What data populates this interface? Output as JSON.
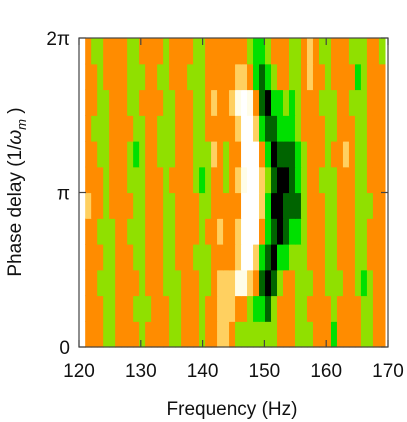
{
  "chart_data": {
    "type": "heatmap",
    "title": "",
    "xlabel": "Frequency (Hz)",
    "ylabel_main": "Phase delay (1/",
    "ylabel_symbol": "ω",
    "ylabel_sub": "m",
    "ylabel_close": " )",
    "xlim": [
      120,
      170
    ],
    "ylim_pi": [
      0,
      2
    ],
    "x_ticks": [
      120,
      130,
      140,
      150,
      160,
      170
    ],
    "x_tick_labels": [
      "120",
      "130",
      "140",
      "150",
      "160",
      "170"
    ],
    "y_ticks_pi": [
      0,
      1,
      2
    ],
    "y_tick_labels": [
      "0",
      "π",
      "2π"
    ],
    "x_min_data": 121,
    "x_step_hz": 0.97,
    "n_columns": 50,
    "n_rows": 12,
    "colormap": [
      "#000000",
      "#006400",
      "#00e000",
      "#90e000",
      "#ff8c00",
      "#ffd060",
      "#fffde8",
      "#ffffff"
    ],
    "frame_color": "#444444",
    "grid": false
  }
}
